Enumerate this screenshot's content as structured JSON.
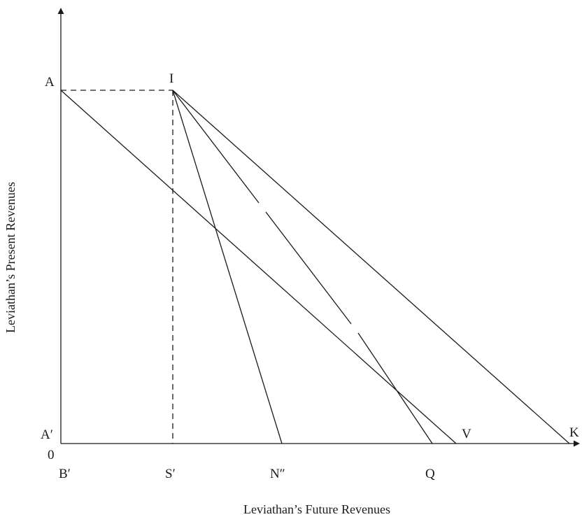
{
  "axes": {
    "x_title": "Leviathan’s Future Revenues",
    "y_title": "Leviathan’s Present Revenues"
  },
  "points": {
    "A": "A",
    "I": "I",
    "A_prime": "A′",
    "origin": "0",
    "V": "V",
    "K": "K",
    "B_prime": "B′",
    "S_prime": "S′",
    "N_double_prime": "N″",
    "Q": "Q"
  }
}
